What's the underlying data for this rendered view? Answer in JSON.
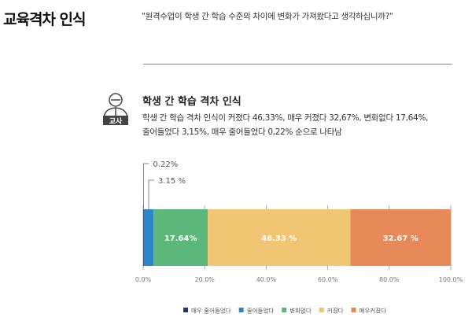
{
  "header": {
    "title": "교육격차 인식",
    "question": "\"원격수업이 학생 간 학습 수준의 차이에 변화가 가져왔다고 생각하십니까?\""
  },
  "section": {
    "badge": "교사",
    "title": "학생 간 학습 격차 인식",
    "summary_line1": "학생 간 학습 격차 인식이 커졌다 46,33%, 매우 커졌다 32,67%, 변화없다 17,64%,",
    "summary_line2": "줄어들었다 3,15%, 매우 줄어들었다 0,22% 순으로 나타남"
  },
  "chart_data": {
    "type": "bar",
    "orientation": "horizontal",
    "stacked": true,
    "xlim": [
      0,
      100
    ],
    "tick_labels": [
      "0.0%",
      "20.0%",
      "40.0%",
      "60.0%",
      "80.0%",
      "100.0%"
    ],
    "legend_position": "bottom",
    "series": [
      {
        "name": "매우 줄어들었다",
        "value": 0.22,
        "label": "0.22%",
        "color": "#1f3b5c"
      },
      {
        "name": "줄어들었다",
        "value": 3.15,
        "label": "3.15 %",
        "color": "#2e86c8"
      },
      {
        "name": "변화없다",
        "value": 17.64,
        "label": "17.64%",
        "color": "#5cb87a"
      },
      {
        "name": "커졌다",
        "value": 46.33,
        "label": "46.33 %",
        "color": "#f0c674"
      },
      {
        "name": "매우커졌다",
        "value": 32.67,
        "label": "32.67 %",
        "color": "#e8895a"
      }
    ]
  }
}
